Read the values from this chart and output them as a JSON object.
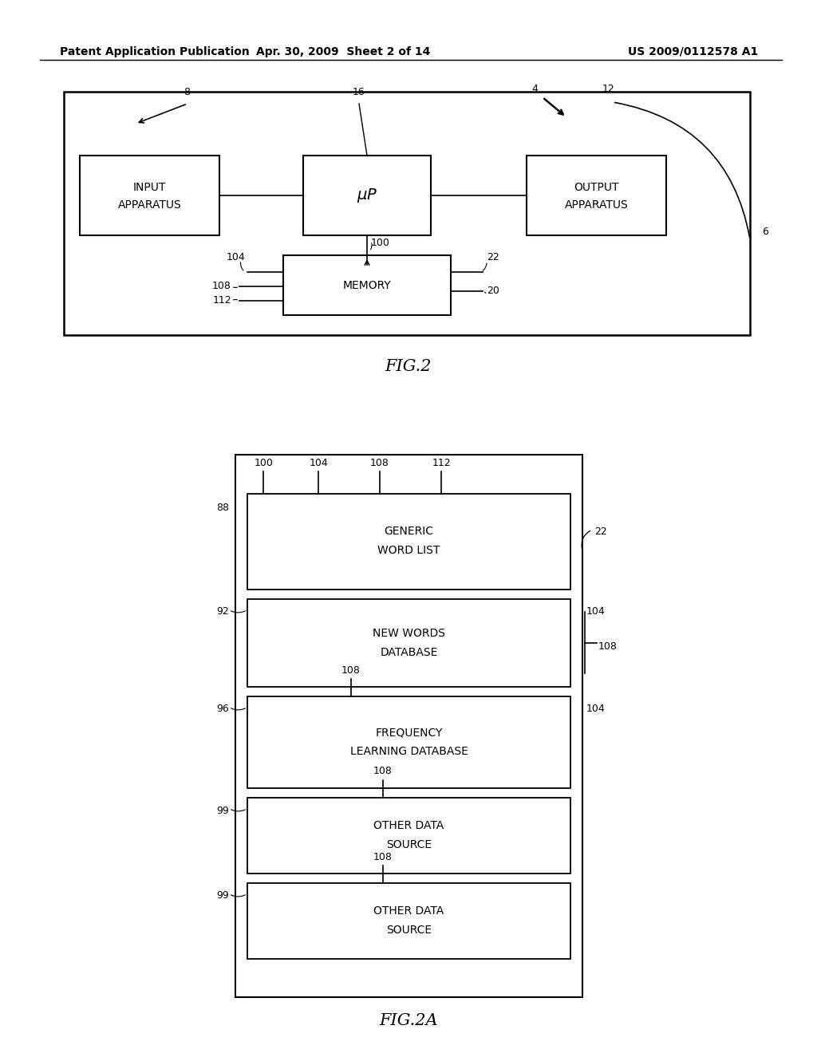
{
  "bg_color": "#ffffff",
  "header_left": "Patent Application Publication",
  "header_mid": "Apr. 30, 2009  Sheet 2 of 14",
  "header_right": "US 2009/0112578 A1"
}
